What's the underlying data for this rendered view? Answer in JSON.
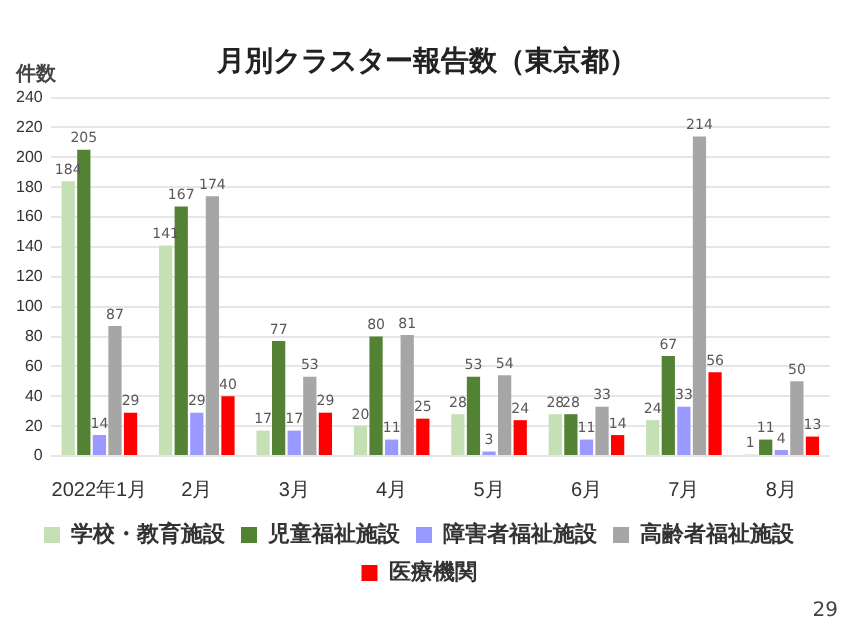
{
  "chart_data": {
    "type": "bar",
    "title": "月別クラスター報告数（東京都）",
    "ylabel": "件数",
    "categories": [
      "2022年1月",
      "2月",
      "3月",
      "4月",
      "5月",
      "6月",
      "7月",
      "8月"
    ],
    "series": [
      {
        "name": "学校・教育施設",
        "color": "#c5e0b4",
        "values": [
          184,
          141,
          17,
          20,
          28,
          28,
          24,
          1
        ]
      },
      {
        "name": "児童福祉施設",
        "color": "#548235",
        "values": [
          205,
          167,
          77,
          80,
          53,
          28,
          67,
          11
        ]
      },
      {
        "name": "障害者福祉施設",
        "color": "#9999ff",
        "values": [
          14,
          29,
          17,
          11,
          3,
          11,
          33,
          4
        ]
      },
      {
        "name": "高齢者福祉施設",
        "color": "#a6a6a6",
        "values": [
          87,
          174,
          53,
          81,
          54,
          33,
          214,
          50
        ]
      },
      {
        "name": "医療機関",
        "color": "#ff0000",
        "values": [
          29,
          40,
          29,
          25,
          24,
          14,
          56,
          13
        ]
      }
    ],
    "ylim": [
      0,
      240
    ],
    "yticks": [
      0,
      20,
      40,
      60,
      80,
      100,
      120,
      140,
      160,
      180,
      200,
      220,
      240
    ],
    "grid": "y",
    "legend": "bottom",
    "data_labels": true,
    "annotations": [
      "29"
    ]
  }
}
